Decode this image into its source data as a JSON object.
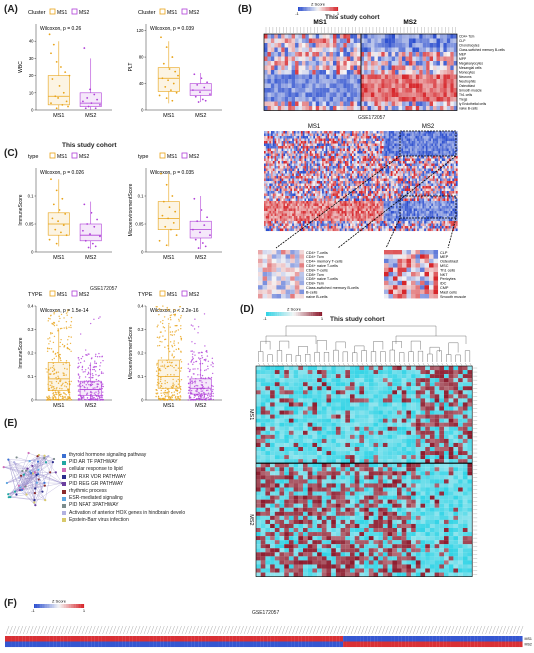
{
  "panels": {
    "A": {
      "letter": "(A)"
    },
    "B": {
      "letter": "(B)"
    },
    "C": {
      "letter": "(C)"
    },
    "D": {
      "letter": "(D)"
    },
    "E": {
      "letter": "(E)"
    },
    "F": {
      "letter": "(F)"
    }
  },
  "legend_labels": {
    "cluster": "Cluster",
    "type": "type",
    "TYPE": "TYPE",
    "ms1": "MS1",
    "ms2": "MS2"
  },
  "captions": {
    "cohort_A": "This study cohort",
    "gse_C": "GSE172057",
    "cohort_B": "This study cohort",
    "gse_B": "GSE172057",
    "cohort_D": "This study cohort",
    "gse_F": "GSE172057",
    "zscore": "Z Score"
  },
  "colors": {
    "ms1": "#e8a317",
    "ms2": "#b040d8",
    "red": "#d7262b",
    "blue": "#2b4ecf",
    "white": "#f5f5f5",
    "cyan": "#33d4e6",
    "maroon": "#8c1a2c"
  },
  "chart_data": [
    {
      "type": "box",
      "id": "WBC",
      "ylabel": "WBC",
      "stat": "Wilcoxon, p = 0.26",
      "categories": [
        "MS1",
        "MS2"
      ],
      "ylim": [
        0,
        50
      ],
      "yticks": [
        0,
        10,
        20,
        30,
        40
      ],
      "box": [
        {
          "q1": 3,
          "median": 8,
          "q3": 20,
          "lo": 0,
          "hi": 40
        },
        {
          "q1": 2,
          "median": 4,
          "q3": 10,
          "lo": 0,
          "hi": 30
        }
      ],
      "points": [
        [
          1,
          44
        ],
        [
          4,
          38
        ],
        [
          2,
          33
        ],
        [
          6,
          28
        ],
        [
          9,
          25
        ],
        [
          12,
          22
        ],
        [
          15,
          20
        ],
        [
          3,
          18
        ],
        [
          8,
          14
        ],
        [
          11,
          10
        ],
        [
          5,
          8
        ],
        [
          7,
          7
        ],
        [
          13,
          5
        ],
        [
          2,
          4
        ],
        [
          10,
          3
        ],
        [
          14,
          2
        ],
        [
          6,
          1
        ]
      ],
      "points2": [
        [
          3,
          36
        ],
        [
          7,
          12
        ],
        [
          10,
          9
        ],
        [
          5,
          7
        ],
        [
          12,
          6
        ],
        [
          2,
          5
        ],
        [
          8,
          4
        ],
        [
          14,
          3
        ],
        [
          6,
          2
        ],
        [
          11,
          1
        ],
        [
          4,
          1
        ]
      ]
    },
    {
      "type": "box",
      "id": "PLT",
      "ylabel": "PLT",
      "stat": "Wilcoxon, p = 0.039",
      "categories": [
        "MS1",
        "MS2"
      ],
      "ylim": [
        0,
        130
      ],
      "yticks": [
        0,
        40,
        80,
        120
      ],
      "box": [
        {
          "q1": 28,
          "median": 48,
          "q3": 64,
          "lo": 10,
          "hi": 104
        },
        {
          "q1": 22,
          "median": 30,
          "q3": 40,
          "lo": 12,
          "hi": 56
        }
      ],
      "points": [
        [
          2,
          110
        ],
        [
          6,
          95
        ],
        [
          10,
          80
        ],
        [
          4,
          70
        ],
        [
          8,
          62
        ],
        [
          12,
          58
        ],
        [
          14,
          52
        ],
        [
          3,
          48
        ],
        [
          7,
          45
        ],
        [
          11,
          40
        ],
        [
          5,
          35
        ],
        [
          9,
          30
        ],
        [
          13,
          26
        ],
        [
          1,
          22
        ],
        [
          6,
          18
        ],
        [
          10,
          14
        ]
      ],
      "points2": [
        [
          3,
          54
        ],
        [
          8,
          48
        ],
        [
          12,
          42
        ],
        [
          5,
          38
        ],
        [
          10,
          34
        ],
        [
          2,
          30
        ],
        [
          7,
          27
        ],
        [
          14,
          24
        ],
        [
          4,
          20
        ],
        [
          9,
          16
        ],
        [
          11,
          14
        ],
        [
          6,
          12
        ]
      ]
    },
    {
      "type": "box",
      "id": "ImmuneScore1",
      "ylabel": "ImmuneScore",
      "stat": "Wilcoxon, p = 0.026",
      "categories": [
        "MS1",
        "MS2"
      ],
      "ylim": [
        0,
        0.15
      ],
      "yticks": [
        0,
        0.05,
        0.1
      ],
      "box": [
        {
          "q1": 0.03,
          "median": 0.05,
          "q3": 0.07,
          "lo": 0.01,
          "hi": 0.13
        },
        {
          "q1": 0.02,
          "median": 0.03,
          "q3": 0.05,
          "lo": 0.005,
          "hi": 0.09
        }
      ],
      "points": [
        [
          2,
          0.13
        ],
        [
          6,
          0.11
        ],
        [
          10,
          0.095
        ],
        [
          4,
          0.085
        ],
        [
          8,
          0.075
        ],
        [
          12,
          0.068
        ],
        [
          3,
          0.06
        ],
        [
          7,
          0.055
        ],
        [
          11,
          0.048
        ],
        [
          5,
          0.04
        ],
        [
          9,
          0.035
        ],
        [
          13,
          0.03
        ],
        [
          1,
          0.022
        ],
        [
          6,
          0.015
        ]
      ],
      "points2": [
        [
          3,
          0.085
        ],
        [
          8,
          0.07
        ],
        [
          12,
          0.058
        ],
        [
          5,
          0.05
        ],
        [
          10,
          0.045
        ],
        [
          2,
          0.038
        ],
        [
          7,
          0.032
        ],
        [
          14,
          0.028
        ],
        [
          4,
          0.02
        ],
        [
          9,
          0.015
        ],
        [
          11,
          0.01
        ],
        [
          6,
          0.008
        ]
      ]
    },
    {
      "type": "box",
      "id": "MicroScore1",
      "ylabel": "MicroenvironmentScore",
      "stat": "Wilcoxon, p = 0.035",
      "categories": [
        "MS1",
        "MS2"
      ],
      "ylim": [
        0,
        0.15
      ],
      "yticks": [
        0,
        0.05,
        0.1
      ],
      "box": [
        {
          "q1": 0.04,
          "median": 0.06,
          "q3": 0.09,
          "lo": 0.01,
          "hi": 0.14
        },
        {
          "q1": 0.025,
          "median": 0.04,
          "q3": 0.055,
          "lo": 0.005,
          "hi": 0.1
        }
      ],
      "points": [
        [
          2,
          0.14
        ],
        [
          6,
          0.12
        ],
        [
          10,
          0.1
        ],
        [
          4,
          0.09
        ],
        [
          8,
          0.08
        ],
        [
          12,
          0.072
        ],
        [
          3,
          0.065
        ],
        [
          7,
          0.06
        ],
        [
          11,
          0.052
        ],
        [
          5,
          0.045
        ],
        [
          9,
          0.04
        ],
        [
          13,
          0.03
        ],
        [
          1,
          0.02
        ],
        [
          6,
          0.012
        ]
      ],
      "points2": [
        [
          3,
          0.095
        ],
        [
          8,
          0.075
        ],
        [
          12,
          0.062
        ],
        [
          5,
          0.055
        ],
        [
          10,
          0.048
        ],
        [
          2,
          0.04
        ],
        [
          7,
          0.035
        ],
        [
          14,
          0.03
        ],
        [
          4,
          0.022
        ],
        [
          9,
          0.016
        ],
        [
          11,
          0.01
        ],
        [
          6,
          0.007
        ]
      ]
    },
    {
      "type": "box",
      "id": "ImmuneScore2",
      "ylabel": "ImmuneScore",
      "stat": "Wilcoxon, p = 1.5e-14",
      "categories": [
        "MS1",
        "MS2"
      ],
      "ylim": [
        0,
        0.4
      ],
      "yticks": [
        0,
        0.1,
        0.2,
        0.3,
        0.4
      ],
      "box": [
        {
          "q1": 0.04,
          "median": 0.09,
          "q3": 0.16,
          "lo": 0,
          "hi": 0.3
        },
        {
          "q1": 0.02,
          "median": 0.045,
          "q3": 0.08,
          "lo": 0,
          "hi": 0.16
        }
      ],
      "dense": true
    },
    {
      "type": "box",
      "id": "MicroScore2",
      "ylabel": "MicroenvironmentScore",
      "stat": "Wilcoxon, p < 2.2e-16",
      "categories": [
        "MS1",
        "MS2"
      ],
      "ylim": [
        0,
        0.4
      ],
      "yticks": [
        0,
        0.1,
        0.2,
        0.3,
        0.4
      ],
      "box": [
        {
          "q1": 0.05,
          "median": 0.1,
          "q3": 0.17,
          "lo": 0,
          "hi": 0.32
        },
        {
          "q1": 0.025,
          "median": 0.05,
          "q3": 0.09,
          "lo": 0,
          "hi": 0.17
        }
      ],
      "dense": true
    }
  ],
  "heatmap_B": {
    "rows": [
      "CD4+ Tcm",
      "CLP",
      "Chondrocytes",
      "Class-switched memory B-cells",
      "MEP",
      "MPP",
      "Megakaryocytes",
      "Mesangial cells",
      "Monocytes",
      "Neurons",
      "Neutrophils",
      "Osteoblast",
      "Smooth muscle",
      "Th1 cells",
      "Tregs",
      "ly Endothelial cells",
      "naive B-cells"
    ],
    "groups": [
      "MS1",
      "MS2"
    ]
  },
  "zoom_left_rows": [
    "CD4+ T-cells",
    "CD4+ Tcm",
    "CD4+ memory T-cells",
    "CD4+ naive T-cells",
    "CD8+ T-cells",
    "CD8+ Tcm",
    "CD8+ naive T-cells",
    "CD8+ Tem",
    "Class-switched memory B-cells",
    "B-cells",
    "naive B-cells"
  ],
  "zoom_right_rows": [
    "CLP",
    "MEP",
    "Osteoblast",
    "MSC",
    "Th1 cells",
    "NKT",
    "Pericytes",
    "iDC",
    "CMP",
    "Mast cells",
    "Smooth muscle"
  ],
  "network_legend": [
    {
      "label": "thyroid hormone signaling pathway",
      "color": "#3a6fd1"
    },
    {
      "label": "PID AR TF PATHWAY",
      "color": "#22a7a3"
    },
    {
      "label": "cellular response to lipid",
      "color": "#d06eb9"
    },
    {
      "label": "PID RXR VDR PATHWAY",
      "color": "#2c2c8c"
    },
    {
      "label": "PID REG GR PATHWAY",
      "color": "#6b3fa0"
    },
    {
      "label": "rhythmic process",
      "color": "#8a2a2a"
    },
    {
      "label": "ESR-mediated signaling",
      "color": "#5ea7e0"
    },
    {
      "label": "PID NFAT 3PATHWAY",
      "color": "#7c8c8c"
    },
    {
      "label": "Activation of anterior HOX genes in hindbrain develo",
      "color": "#b1b1e0"
    },
    {
      "label": "Epstein-Barr virus infection",
      "color": "#d8c96a"
    }
  ],
  "heatmap_D": {
    "groups": [
      "MS1",
      "MS2"
    ]
  },
  "heatmap_F": {
    "rows": [
      "MS1",
      "MS2"
    ]
  },
  "zscore_ticks": {
    "lo": "-1",
    "hi": "1"
  }
}
